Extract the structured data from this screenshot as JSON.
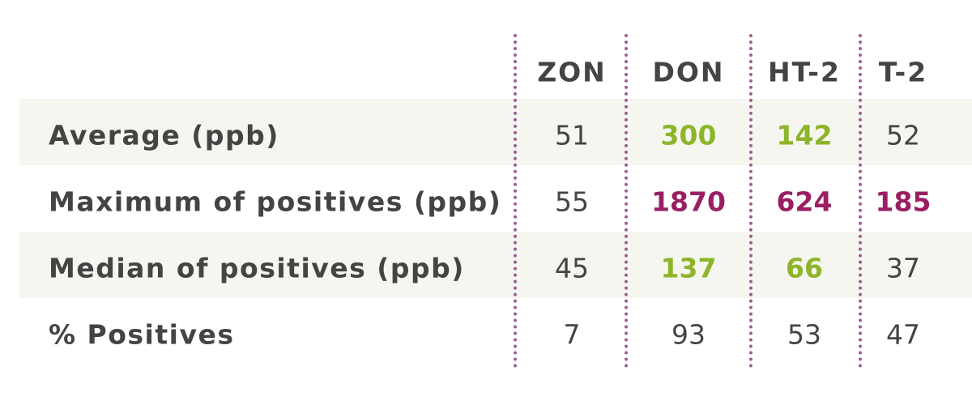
{
  "table": {
    "columns": [
      "ZON",
      "DON",
      "HT-2",
      "T-2"
    ],
    "rows": [
      {
        "label": "Average (ppb)",
        "cells": [
          51,
          300,
          142,
          52
        ],
        "cell_colors": [
          null,
          "#8db52a",
          "#8db52a",
          null
        ]
      },
      {
        "label": "Maximum of positives (ppb)",
        "cells": [
          55,
          1870,
          624,
          185
        ],
        "cell_colors": [
          null,
          "#9a1f62",
          "#9a1f62",
          "#9a1f62"
        ]
      },
      {
        "label": "Median of positives (ppb)",
        "cells": [
          45,
          137,
          66,
          37
        ],
        "cell_colors": [
          null,
          "#8db52a",
          "#8db52a",
          null
        ]
      },
      {
        "label": "% Positives",
        "cells": [
          7,
          93,
          53,
          47
        ],
        "cell_colors": [
          null,
          null,
          null,
          null
        ]
      }
    ]
  }
}
